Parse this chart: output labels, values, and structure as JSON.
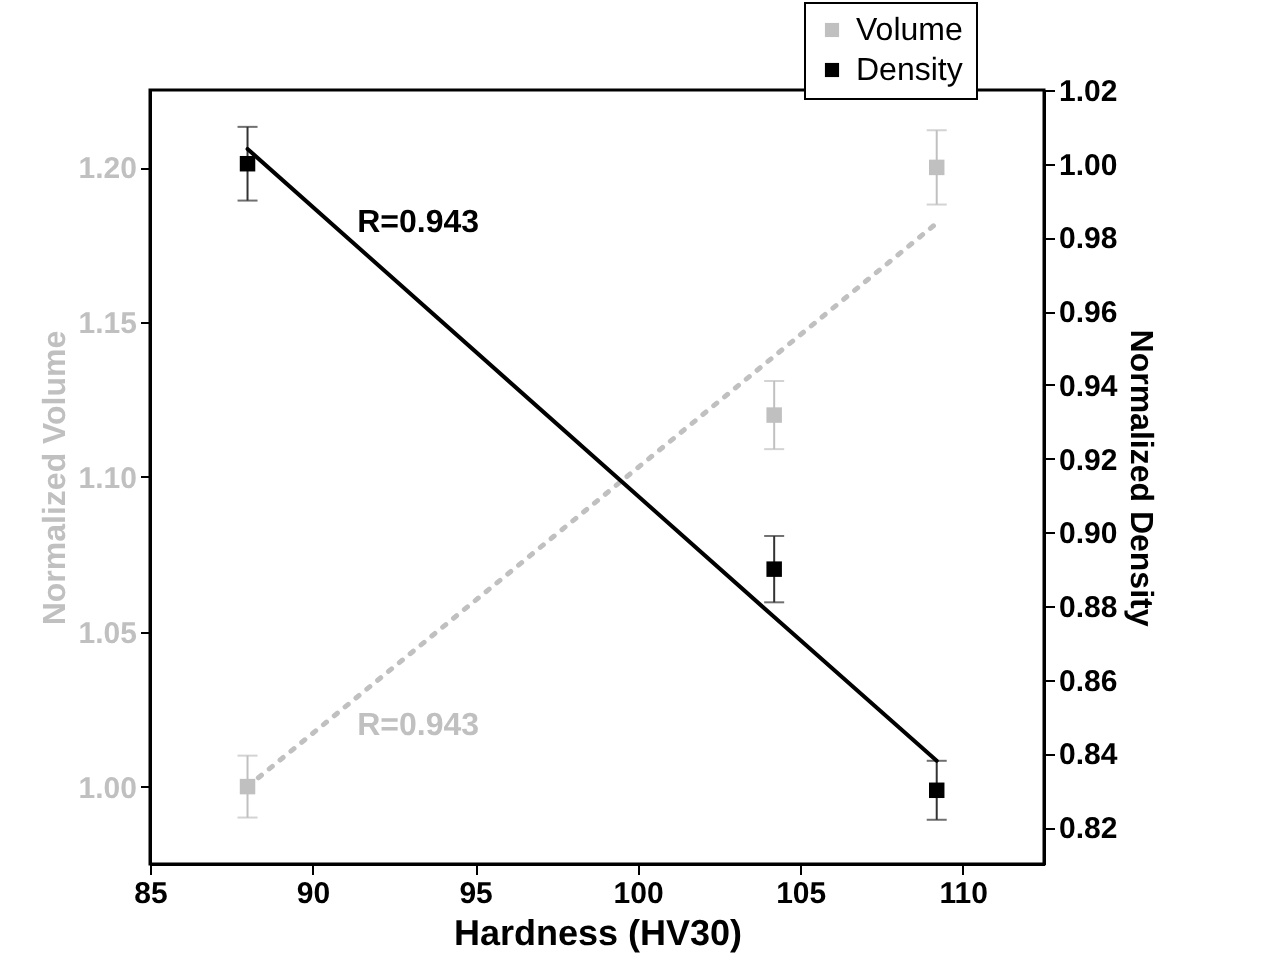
{
  "chart_data": {
    "type": "scatter",
    "xlabel": "Hardness (HV30)",
    "ylabel": "Normalized Volume",
    "y2label": "Normalized Density",
    "xlim": [
      85,
      112.5
    ],
    "xticks": [
      85,
      90,
      95,
      100,
      105,
      110
    ],
    "ylim": [
      0.975,
      1.225
    ],
    "yticks": [
      {
        "value": 1.0,
        "label": "1.00"
      },
      {
        "value": 1.05,
        "label": "1.05"
      },
      {
        "value": 1.1,
        "label": "1.10"
      },
      {
        "value": 1.15,
        "label": "1.15"
      },
      {
        "value": 1.2,
        "label": "1.20"
      }
    ],
    "y2lim": [
      0.81,
      1.02
    ],
    "y2ticks": [
      {
        "value": 0.82,
        "label": "0.82"
      },
      {
        "value": 0.84,
        "label": "0.84"
      },
      {
        "value": 0.86,
        "label": "0.86"
      },
      {
        "value": 0.88,
        "label": "0.88"
      },
      {
        "value": 0.9,
        "label": "0.90"
      },
      {
        "value": 0.92,
        "label": "0.92"
      },
      {
        "value": 0.94,
        "label": "0.94"
      },
      {
        "value": 0.96,
        "label": "0.96"
      },
      {
        "value": 0.98,
        "label": "0.98"
      },
      {
        "value": 1.0,
        "label": "1.00"
      },
      {
        "value": 1.02,
        "label": "1.02"
      }
    ],
    "x": [
      88,
      104.2,
      109.2
    ],
    "series": [
      {
        "name": "Volume",
        "marker": "square",
        "color": "#c0c0c0",
        "axis": "y",
        "values": [
          1.0,
          1.12,
          1.2
        ],
        "errors": [
          0.01,
          0.011,
          0.012
        ]
      },
      {
        "name": "Density",
        "marker": "square",
        "color": "#000000",
        "axis": "y2",
        "values": [
          1.0,
          0.89,
          0.83
        ],
        "errors": [
          0.01,
          0.009,
          0.008
        ]
      },
      {
        "type": "line",
        "color": "#000000",
        "axis": "y2",
        "line_style": "solid",
        "values": [
          1.004,
          0.877,
          0.838
        ]
      },
      {
        "type": "line",
        "color": "#c0c0c0",
        "axis": "y",
        "line_style": "dotted",
        "values": [
          1.0,
          1.139,
          1.182
        ]
      }
    ],
    "annotations": [
      "R=0.943",
      "R=0.943"
    ],
    "legend": "top right"
  }
}
